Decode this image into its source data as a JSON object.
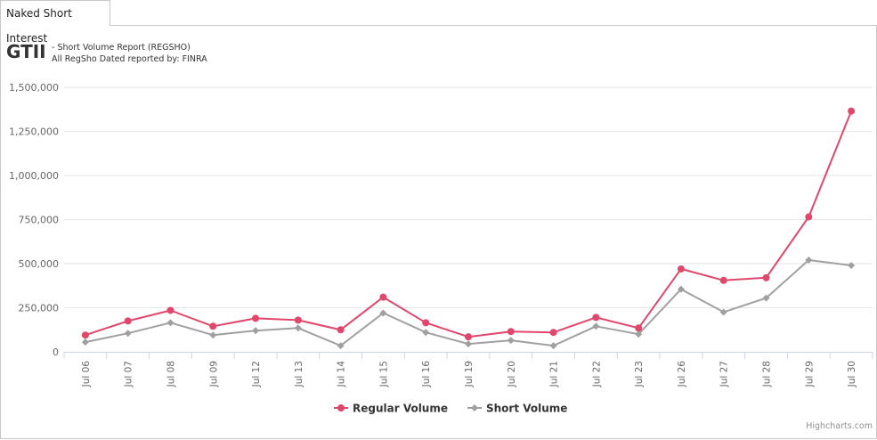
{
  "tab": {
    "label": "Naked Short Interest"
  },
  "header": {
    "ticker": "GTII",
    "report_line": "- Short Volume Report  (REGSHO)",
    "source_line": "All RegSho Dated reported by: FINRA"
  },
  "chart_data": {
    "type": "line",
    "categories": [
      "Jul 06",
      "Jul 07",
      "Jul 08",
      "Jul 09",
      "Jul 12",
      "Jul 13",
      "Jul 14",
      "Jul 15",
      "Jul 16",
      "Jul 19",
      "Jul 20",
      "Jul 21",
      "Jul 22",
      "Jul 23",
      "Jul 26",
      "Jul 27",
      "Jul 28",
      "Jul 29",
      "Jul 30"
    ],
    "series": [
      {
        "name": "Regular Volume",
        "color": "#e0476b",
        "marker": "circle",
        "values": [
          95000,
          175000,
          235000,
          145000,
          190000,
          180000,
          125000,
          310000,
          165000,
          85000,
          115000,
          110000,
          195000,
          135000,
          470000,
          405000,
          420000,
          765000,
          1365000
        ]
      },
      {
        "name": "Short Volume",
        "color": "#a0a0a0",
        "marker": "diamond",
        "values": [
          55000,
          105000,
          165000,
          95000,
          120000,
          135000,
          35000,
          220000,
          110000,
          45000,
          65000,
          35000,
          145000,
          100000,
          355000,
          225000,
          305000,
          520000,
          490000
        ]
      }
    ],
    "yticks": [
      "0",
      "250,000",
      "500,000",
      "750,000",
      "1,000,000",
      "1,250,000",
      "1,500,000"
    ],
    "ylim": [
      0,
      1500000
    ],
    "title": "",
    "xlabel": "",
    "ylabel": "",
    "grid": true,
    "legend": "bottom-center"
  },
  "credits": "Highcharts.com"
}
